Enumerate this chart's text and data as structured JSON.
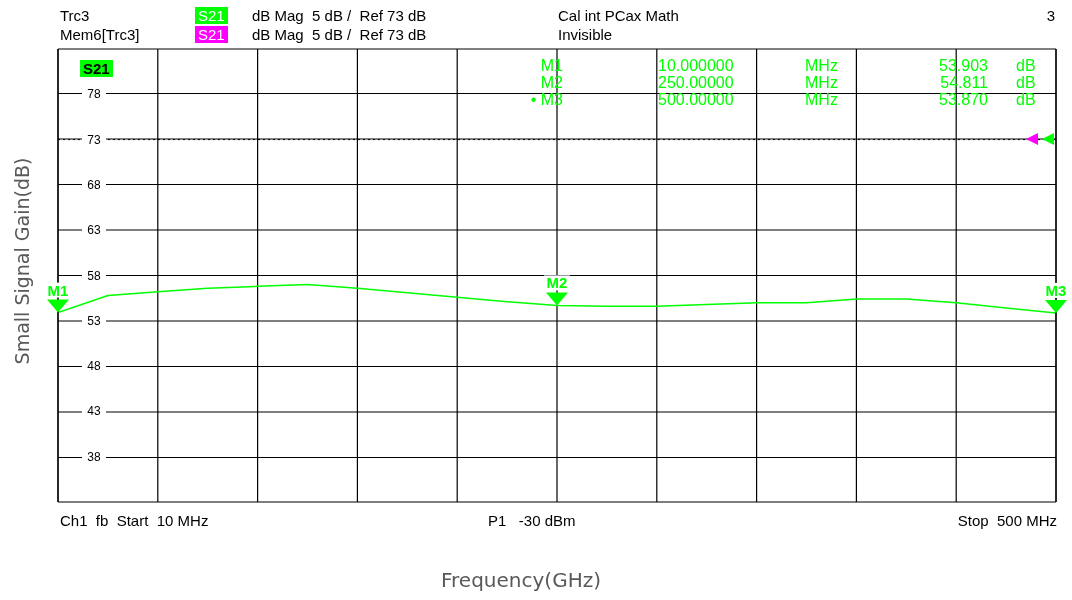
{
  "chart_data": {
    "type": "line",
    "xlabel": "Frequency(GHz)",
    "ylabel": "Small Signal Gain(dB)",
    "categories": [
      null,
      null,
      null,
      null,
      null,
      null,
      null,
      null,
      null,
      null,
      null,
      null,
      null,
      null,
      null,
      null,
      null,
      null,
      null,
      null,
      null
    ],
    "series": [
      {
        "color": "#00ff00",
        "values": [
          53.903,
          55.8,
          56.2,
          56.6,
          56.8,
          57.0,
          56.6,
          56.1,
          55.6,
          55.1,
          54.7,
          54.6,
          54.6,
          54.8,
          55.0,
          55.0,
          55.4,
          55.4,
          55.0,
          54.4,
          53.87
        ]
      }
    ],
    "ylim": [
      33,
      83
    ],
    "yticks": [
      38,
      43,
      48,
      53,
      58,
      63,
      68,
      73,
      78
    ],
    "grid": true,
    "marker": "none",
    "line_style": "solid",
    "ref_lines": [
      {
        "axis": "y",
        "value": 73,
        "color": "#000000",
        "line_style": "dotted"
      }
    ],
    "annotations": [
      "Trc3",
      "S21",
      "dB Mag  5 dB /  Ref 73 dB",
      "Cal int PCax Math",
      "3",
      "Mem6[Trc3]",
      "S21",
      "dB Mag  5 dB /  Ref 73 dB",
      "Invisible",
      "S21",
      "M1",
      "10.000000",
      "MHz",
      "53.903",
      "dB",
      "M2",
      "250.00000",
      "MHz",
      "54.811",
      "dB",
      "• M3",
      "500.00000",
      "MHz",
      "53.870",
      "dB",
      "Ch1  fb  Start  10 MHz",
      "P1   -30 dBm",
      "Stop  500 MHz",
      "M1",
      "M2",
      "M3"
    ]
  }
}
